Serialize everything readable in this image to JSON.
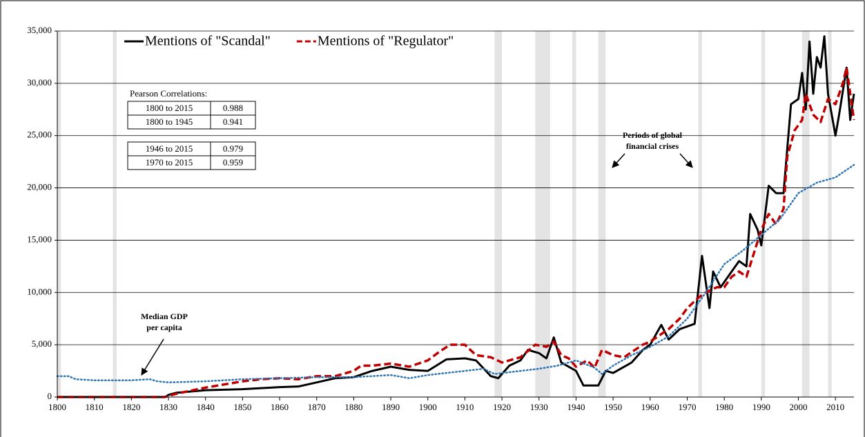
{
  "chart_data": {
    "type": "line",
    "xlim": [
      1800,
      2015
    ],
    "xticks": [
      1800,
      1810,
      1820,
      1830,
      1840,
      1850,
      1860,
      1870,
      1880,
      1890,
      1900,
      1910,
      1920,
      1930,
      1940,
      1950,
      1960,
      1970,
      1980,
      1990,
      2000,
      2010
    ],
    "ylim": [
      0,
      35000
    ],
    "yticks": [
      0,
      {
        "value": 5000,
        "label": "5,000"
      },
      {
        "value": 10000,
        "label": "10,000"
      },
      {
        "value": 15000,
        "label": "15,000"
      },
      {
        "value": 20000,
        "label": "20,000"
      },
      {
        "value": 25000,
        "label": "25,000"
      },
      {
        "value": 30000,
        "label": "30,000"
      },
      {
        "value": 35000,
        "label": "35,000"
      }
    ],
    "grid": true,
    "crisis_periods": [
      [
        1800,
        1801
      ],
      [
        1815,
        1816
      ],
      [
        1918,
        1920
      ],
      [
        1929,
        1933
      ],
      [
        1939,
        1940
      ],
      [
        1946,
        1948
      ],
      [
        1973,
        1974
      ],
      [
        1990,
        1991
      ],
      [
        2001,
        2003
      ],
      [
        2008,
        2009
      ]
    ],
    "series": [
      {
        "name": "Mentions of \"Scandal\"",
        "color": "#000000",
        "dash": "solid",
        "x": [
          1800,
          1829,
          1830,
          1832,
          1840,
          1845,
          1850,
          1855,
          1860,
          1865,
          1870,
          1875,
          1880,
          1885,
          1890,
          1895,
          1900,
          1905,
          1910,
          1913,
          1917,
          1919,
          1922,
          1925,
          1927,
          1930,
          1932,
          1934,
          1936,
          1940,
          1942,
          1946,
          1948,
          1950,
          1955,
          1958,
          1960,
          1963,
          1965,
          1968,
          1972,
          1974,
          1976,
          1977,
          1979,
          1982,
          1984,
          1986,
          1987,
          1989,
          1990,
          1992,
          1994,
          1996,
          1998,
          2000,
          2001,
          2002,
          2003,
          2004,
          2005,
          2006,
          2007,
          2008,
          2010,
          2011,
          2013,
          2014,
          2015
        ],
        "values": [
          0,
          0,
          200,
          400,
          650,
          700,
          750,
          850,
          950,
          1000,
          1400,
          1800,
          1900,
          2500,
          2900,
          2600,
          2500,
          3600,
          3700,
          3500,
          2000,
          1800,
          3000,
          3500,
          4500,
          4200,
          3700,
          5700,
          3300,
          2500,
          1100,
          1100,
          2500,
          2300,
          3300,
          4500,
          5000,
          6900,
          5500,
          6500,
          7000,
          13500,
          8500,
          12000,
          10500,
          12000,
          13000,
          12500,
          17500,
          16000,
          14500,
          20200,
          19500,
          19500,
          28000,
          28500,
          31000,
          27500,
          34000,
          29000,
          32500,
          31500,
          34500,
          29000,
          25000,
          27000,
          31500,
          26500,
          29000
        ]
      },
      {
        "name": "Mentions of \"Regulator\"",
        "color": "#c00000",
        "dash": "dashed",
        "x": [
          1800,
          1829,
          1832,
          1840,
          1845,
          1850,
          1855,
          1860,
          1865,
          1870,
          1875,
          1880,
          1882,
          1885,
          1890,
          1895,
          1900,
          1903,
          1906,
          1910,
          1913,
          1917,
          1920,
          1925,
          1929,
          1932,
          1934,
          1936,
          1938,
          1940,
          1943,
          1945,
          1947,
          1950,
          1953,
          1955,
          1958,
          1960,
          1965,
          1968,
          1970,
          1973,
          1975,
          1978,
          1980,
          1982,
          1984,
          1986,
          1990,
          1992,
          1994,
          1996,
          1997,
          1999,
          2001,
          2002,
          2004,
          2006,
          2008,
          2010,
          2012,
          2013,
          2015
        ],
        "values": [
          0,
          0,
          300,
          900,
          1200,
          1500,
          1700,
          1800,
          1700,
          2000,
          2000,
          2500,
          3000,
          3000,
          3200,
          2900,
          3500,
          4300,
          5000,
          5000,
          4000,
          3800,
          3300,
          3800,
          5000,
          4800,
          5300,
          4000,
          3700,
          2900,
          3500,
          2800,
          4500,
          4000,
          3800,
          4300,
          5000,
          5300,
          6500,
          7500,
          8500,
          9500,
          10000,
          10500,
          10500,
          11500,
          12000,
          11500,
          16000,
          17500,
          16500,
          18000,
          23000,
          25500,
          26500,
          29000,
          27000,
          26300,
          28500,
          28000,
          30000,
          31500,
          26500
        ]
      },
      {
        "color": "#2e75b6",
        "dash": "dotted",
        "x": [
          1800,
          1803,
          1805,
          1810,
          1815,
          1820,
          1825,
          1827,
          1830,
          1840,
          1850,
          1860,
          1870,
          1880,
          1890,
          1895,
          1900,
          1910,
          1915,
          1918,
          1925,
          1930,
          1935,
          1940,
          1945,
          1947,
          1950,
          1955,
          1960,
          1965,
          1970,
          1975,
          1980,
          1985,
          1990,
          1995,
          2000,
          2005,
          2010,
          2015
        ],
        "values": [
          2000,
          2000,
          1700,
          1600,
          1600,
          1600,
          1700,
          1500,
          1400,
          1500,
          1700,
          1800,
          1900,
          1900,
          2100,
          1800,
          2100,
          2500,
          2700,
          2200,
          2500,
          2700,
          3000,
          3500,
          2800,
          2200,
          3000,
          4000,
          4800,
          5800,
          7500,
          10000,
          12700,
          14000,
          15500,
          17000,
          19500,
          20500,
          21000,
          22200
        ]
      }
    ],
    "annotations": [
      {
        "lines": [
          "Median GDP",
          "per capita"
        ]
      },
      {
        "lines": [
          "Periods of global",
          "financial crises"
        ]
      }
    ],
    "correlations": {
      "title": "Pearson Correlations:",
      "rows": [
        [
          "1800 to 2015",
          0.988
        ],
        [
          "1800 to 1945",
          0.941
        ],
        [
          "1946 to 2015",
          0.979
        ],
        [
          "1970 to 2015",
          0.959
        ]
      ]
    }
  }
}
